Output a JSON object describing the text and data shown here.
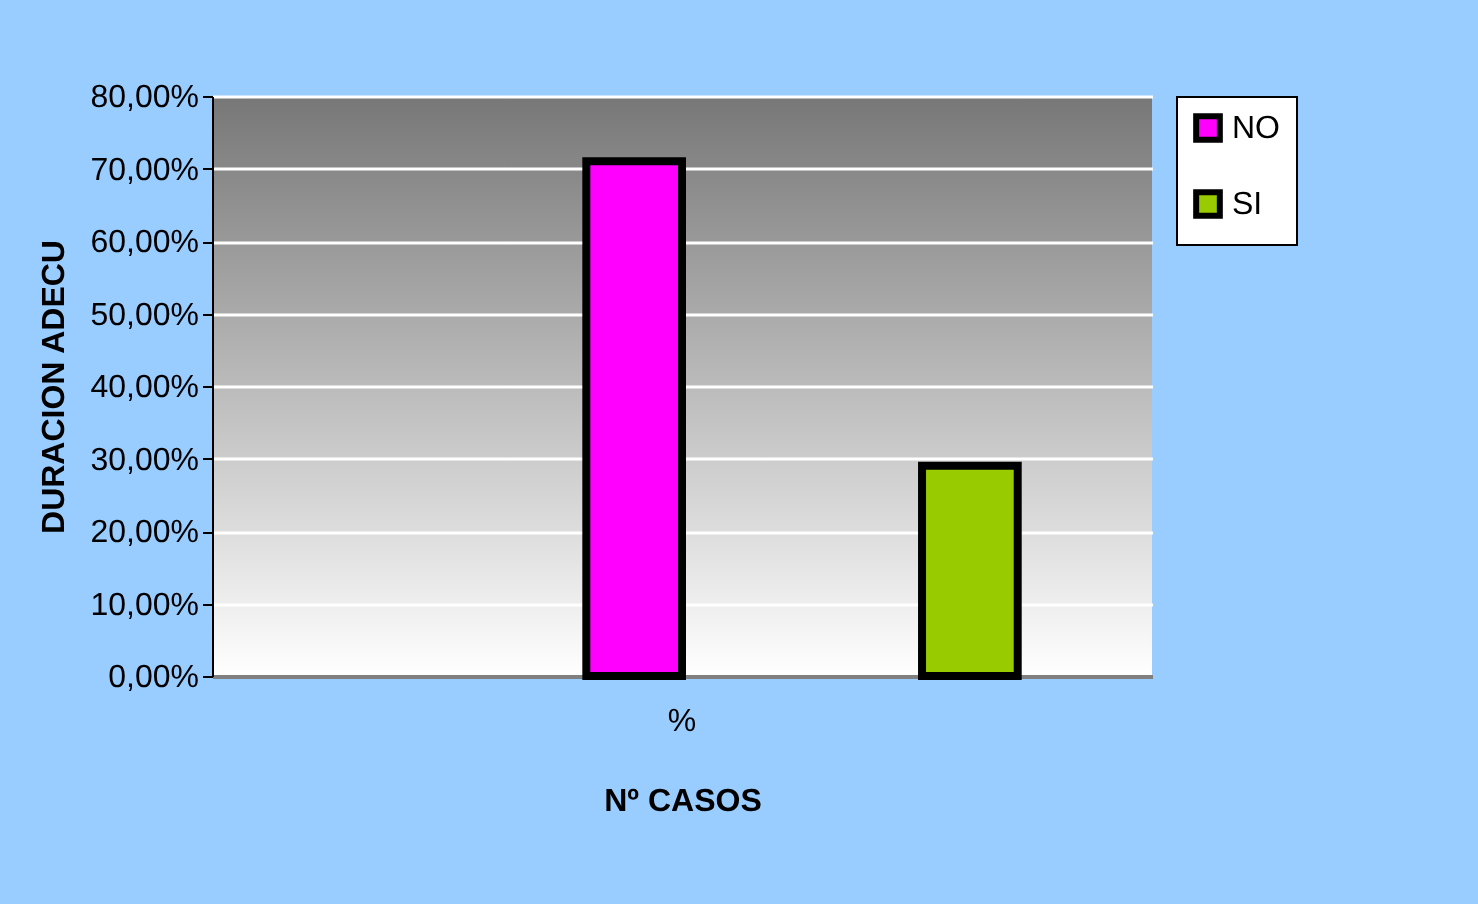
{
  "chart_data": {
    "type": "bar",
    "categories": [
      "%"
    ],
    "series": [
      {
        "name": "NO",
        "color": "#ff00ff",
        "values": [
          71.0
        ]
      },
      {
        "name": "SI",
        "color": "#99cc00",
        "values": [
          29.0
        ]
      }
    ],
    "xlabel": "Nº CASOS",
    "ylabel": "DURACION ADECU",
    "ylim": [
      0,
      80
    ],
    "yticks": [
      {
        "value": 0,
        "label": "0,00%"
      },
      {
        "value": 10,
        "label": "10,00%"
      },
      {
        "value": 20,
        "label": "20,00%"
      },
      {
        "value": 30,
        "label": "30,00%"
      },
      {
        "value": 40,
        "label": "40,00%"
      },
      {
        "value": 50,
        "label": "50,00%"
      },
      {
        "value": 60,
        "label": "60,00%"
      },
      {
        "value": 70,
        "label": "70,00%"
      },
      {
        "value": 80,
        "label": "80,00%"
      }
    ],
    "grid": "y",
    "legend": "right"
  }
}
